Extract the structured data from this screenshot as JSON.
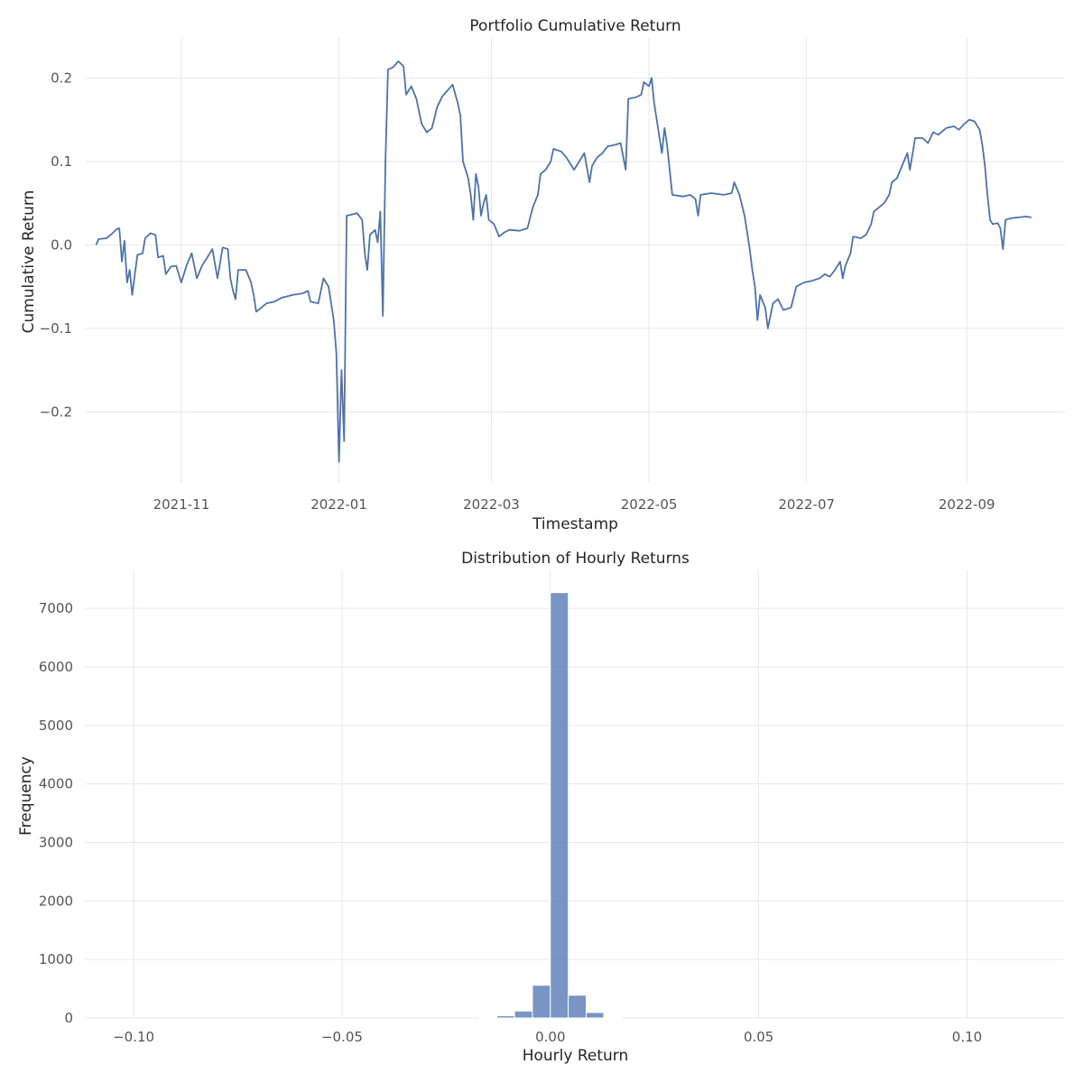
{
  "chart_data": [
    {
      "type": "line",
      "title": "Portfolio Cumulative Return",
      "xlabel": "Timestamp",
      "ylabel": "Cumulative Return",
      "grid": true,
      "x_range": [
        "2021-09-25",
        "2022-10-09"
      ],
      "ylim": [
        -0.285,
        0.248
      ],
      "x_ticks": [
        {
          "label": "2021-11",
          "date": "2021-11-01"
        },
        {
          "label": "2022-01",
          "date": "2022-01-01"
        },
        {
          "label": "2022-03",
          "date": "2022-03-01"
        },
        {
          "label": "2022-05",
          "date": "2022-05-01"
        },
        {
          "label": "2022-07",
          "date": "2022-07-01"
        },
        {
          "label": "2022-09",
          "date": "2022-09-01"
        }
      ],
      "y_ticks": [
        {
          "label": "−0.2",
          "value": -0.2
        },
        {
          "label": "−0.1",
          "value": -0.1
        },
        {
          "label": "0.0",
          "value": 0.0
        },
        {
          "label": "0.1",
          "value": 0.1
        },
        {
          "label": "0.2",
          "value": 0.2
        }
      ],
      "series": [
        {
          "color": "#4c72b0",
          "points": [
            [
              "2021-09-29",
              0.0
            ],
            [
              "2021-09-30",
              0.007
            ],
            [
              "2021-10-03",
              0.008
            ],
            [
              "2021-10-05",
              0.013
            ],
            [
              "2021-10-07",
              0.019
            ],
            [
              "2021-10-08",
              0.02
            ],
            [
              "2021-10-09",
              -0.02
            ],
            [
              "2021-10-10",
              0.005
            ],
            [
              "2021-10-11",
              -0.045
            ],
            [
              "2021-10-12",
              -0.03
            ],
            [
              "2021-10-13",
              -0.06
            ],
            [
              "2021-10-14",
              -0.035
            ],
            [
              "2021-10-15",
              -0.012
            ],
            [
              "2021-10-17",
              -0.01
            ],
            [
              "2021-10-18",
              0.008
            ],
            [
              "2021-10-20",
              0.014
            ],
            [
              "2021-10-22",
              0.012
            ],
            [
              "2021-10-23",
              -0.015
            ],
            [
              "2021-10-25",
              -0.013
            ],
            [
              "2021-10-26",
              -0.035
            ],
            [
              "2021-10-28",
              -0.026
            ],
            [
              "2021-10-30",
              -0.025
            ],
            [
              "2021-11-01",
              -0.045
            ],
            [
              "2021-11-03",
              -0.025
            ],
            [
              "2021-11-05",
              -0.01
            ],
            [
              "2021-11-07",
              -0.04
            ],
            [
              "2021-11-09",
              -0.025
            ],
            [
              "2021-11-11",
              -0.015
            ],
            [
              "2021-11-13",
              -0.005
            ],
            [
              "2021-11-15",
              -0.04
            ],
            [
              "2021-11-17",
              -0.003
            ],
            [
              "2021-11-19",
              -0.005
            ],
            [
              "2021-11-20",
              -0.04
            ],
            [
              "2021-11-21",
              -0.055
            ],
            [
              "2021-11-22",
              -0.065
            ],
            [
              "2021-11-23",
              -0.03
            ],
            [
              "2021-11-26",
              -0.03
            ],
            [
              "2021-11-28",
              -0.045
            ],
            [
              "2021-11-29",
              -0.06
            ],
            [
              "2021-11-30",
              -0.08
            ],
            [
              "2021-12-02",
              -0.075
            ],
            [
              "2021-12-04",
              -0.07
            ],
            [
              "2021-12-07",
              -0.068
            ],
            [
              "2021-12-10",
              -0.063
            ],
            [
              "2021-12-14",
              -0.06
            ],
            [
              "2021-12-18",
              -0.058
            ],
            [
              "2021-12-20",
              -0.055
            ],
            [
              "2021-12-21",
              -0.068
            ],
            [
              "2021-12-24",
              -0.07
            ],
            [
              "2021-12-26",
              -0.04
            ],
            [
              "2021-12-28",
              -0.05
            ],
            [
              "2021-12-30",
              -0.09
            ],
            [
              "2021-12-31",
              -0.13
            ],
            [
              "2022-01-01",
              -0.26
            ],
            [
              "2022-01-02",
              -0.15
            ],
            [
              "2022-01-03",
              -0.235
            ],
            [
              "2022-01-04",
              0.035
            ],
            [
              "2022-01-08",
              0.038
            ],
            [
              "2022-01-10",
              0.03
            ],
            [
              "2022-01-11",
              -0.01
            ],
            [
              "2022-01-12",
              -0.03
            ],
            [
              "2022-01-13",
              0.012
            ],
            [
              "2022-01-15",
              0.018
            ],
            [
              "2022-01-16",
              0.003
            ],
            [
              "2022-01-17",
              0.04
            ],
            [
              "2022-01-18",
              -0.085
            ],
            [
              "2022-01-19",
              0.1
            ],
            [
              "2022-01-20",
              0.21
            ],
            [
              "2022-01-22",
              0.213
            ],
            [
              "2022-01-24",
              0.22
            ],
            [
              "2022-01-26",
              0.214
            ],
            [
              "2022-01-27",
              0.18
            ],
            [
              "2022-01-29",
              0.19
            ],
            [
              "2022-01-31",
              0.175
            ],
            [
              "2022-02-02",
              0.145
            ],
            [
              "2022-02-04",
              0.135
            ],
            [
              "2022-02-06",
              0.14
            ],
            [
              "2022-02-08",
              0.165
            ],
            [
              "2022-02-10",
              0.178
            ],
            [
              "2022-02-12",
              0.185
            ],
            [
              "2022-02-14",
              0.192
            ],
            [
              "2022-02-16",
              0.17
            ],
            [
              "2022-02-17",
              0.155
            ],
            [
              "2022-02-18",
              0.1
            ],
            [
              "2022-02-20",
              0.08
            ],
            [
              "2022-02-21",
              0.06
            ],
            [
              "2022-02-22",
              0.03
            ],
            [
              "2022-02-23",
              0.085
            ],
            [
              "2022-02-24",
              0.07
            ],
            [
              "2022-02-25",
              0.035
            ],
            [
              "2022-02-26",
              0.05
            ],
            [
              "2022-02-27",
              0.06
            ],
            [
              "2022-02-28",
              0.03
            ],
            [
              "2022-03-02",
              0.025
            ],
            [
              "2022-03-04",
              0.01
            ],
            [
              "2022-03-06",
              0.015
            ],
            [
              "2022-03-08",
              0.018
            ],
            [
              "2022-03-12",
              0.017
            ],
            [
              "2022-03-15",
              0.02
            ],
            [
              "2022-03-17",
              0.045
            ],
            [
              "2022-03-19",
              0.06
            ],
            [
              "2022-03-20",
              0.085
            ],
            [
              "2022-03-22",
              0.09
            ],
            [
              "2022-03-24",
              0.1
            ],
            [
              "2022-03-25",
              0.115
            ],
            [
              "2022-03-28",
              0.112
            ],
            [
              "2022-03-30",
              0.105
            ],
            [
              "2022-04-01",
              0.095
            ],
            [
              "2022-04-02",
              0.09
            ],
            [
              "2022-04-04",
              0.1
            ],
            [
              "2022-04-06",
              0.11
            ],
            [
              "2022-04-08",
              0.075
            ],
            [
              "2022-04-09",
              0.095
            ],
            [
              "2022-04-11",
              0.105
            ],
            [
              "2022-04-13",
              0.11
            ],
            [
              "2022-04-15",
              0.118
            ],
            [
              "2022-04-18",
              0.12
            ],
            [
              "2022-04-20",
              0.122
            ],
            [
              "2022-04-22",
              0.09
            ],
            [
              "2022-04-23",
              0.175
            ],
            [
              "2022-04-26",
              0.177
            ],
            [
              "2022-04-28",
              0.18
            ],
            [
              "2022-04-29",
              0.195
            ],
            [
              "2022-05-01",
              0.19
            ],
            [
              "2022-05-02",
              0.2
            ],
            [
              "2022-05-03",
              0.17
            ],
            [
              "2022-05-04",
              0.15
            ],
            [
              "2022-05-05",
              0.13
            ],
            [
              "2022-05-06",
              0.11
            ],
            [
              "2022-05-07",
              0.14
            ],
            [
              "2022-05-08",
              0.12
            ],
            [
              "2022-05-10",
              0.06
            ],
            [
              "2022-05-14",
              0.058
            ],
            [
              "2022-05-17",
              0.06
            ],
            [
              "2022-05-19",
              0.055
            ],
            [
              "2022-05-20",
              0.035
            ],
            [
              "2022-05-21",
              0.06
            ],
            [
              "2022-05-25",
              0.062
            ],
            [
              "2022-05-30",
              0.06
            ],
            [
              "2022-06-02",
              0.062
            ],
            [
              "2022-06-03",
              0.075
            ],
            [
              "2022-06-05",
              0.06
            ],
            [
              "2022-06-07",
              0.035
            ],
            [
              "2022-06-08",
              0.015
            ],
            [
              "2022-06-09",
              -0.005
            ],
            [
              "2022-06-10",
              -0.03
            ],
            [
              "2022-06-11",
              -0.05
            ],
            [
              "2022-06-12",
              -0.09
            ],
            [
              "2022-06-13",
              -0.06
            ],
            [
              "2022-06-15",
              -0.075
            ],
            [
              "2022-06-16",
              -0.1
            ],
            [
              "2022-06-18",
              -0.07
            ],
            [
              "2022-06-20",
              -0.065
            ],
            [
              "2022-06-22",
              -0.078
            ],
            [
              "2022-06-25",
              -0.075
            ],
            [
              "2022-06-27",
              -0.05
            ],
            [
              "2022-06-30",
              -0.045
            ],
            [
              "2022-07-03",
              -0.043
            ],
            [
              "2022-07-06",
              -0.04
            ],
            [
              "2022-07-08",
              -0.035
            ],
            [
              "2022-07-10",
              -0.038
            ],
            [
              "2022-07-12",
              -0.03
            ],
            [
              "2022-07-14",
              -0.02
            ],
            [
              "2022-07-15",
              -0.04
            ],
            [
              "2022-07-16",
              -0.025
            ],
            [
              "2022-07-18",
              -0.01
            ],
            [
              "2022-07-19",
              0.01
            ],
            [
              "2022-07-22",
              0.008
            ],
            [
              "2022-07-24",
              0.012
            ],
            [
              "2022-07-26",
              0.025
            ],
            [
              "2022-07-27",
              0.04
            ],
            [
              "2022-07-29",
              0.045
            ],
            [
              "2022-07-31",
              0.05
            ],
            [
              "2022-08-02",
              0.06
            ],
            [
              "2022-08-03",
              0.075
            ],
            [
              "2022-08-05",
              0.08
            ],
            [
              "2022-08-07",
              0.095
            ],
            [
              "2022-08-09",
              0.11
            ],
            [
              "2022-08-10",
              0.09
            ],
            [
              "2022-08-12",
              0.128
            ],
            [
              "2022-08-15",
              0.128
            ],
            [
              "2022-08-17",
              0.122
            ],
            [
              "2022-08-19",
              0.135
            ],
            [
              "2022-08-21",
              0.132
            ],
            [
              "2022-08-24",
              0.14
            ],
            [
              "2022-08-27",
              0.142
            ],
            [
              "2022-08-29",
              0.138
            ],
            [
              "2022-08-31",
              0.145
            ],
            [
              "2022-09-02",
              0.15
            ],
            [
              "2022-09-04",
              0.148
            ],
            [
              "2022-09-06",
              0.138
            ],
            [
              "2022-09-07",
              0.12
            ],
            [
              "2022-09-08",
              0.095
            ],
            [
              "2022-09-09",
              0.06
            ],
            [
              "2022-09-10",
              0.03
            ],
            [
              "2022-09-11",
              0.025
            ],
            [
              "2022-09-13",
              0.026
            ],
            [
              "2022-09-14",
              0.02
            ],
            [
              "2022-09-15",
              -0.005
            ],
            [
              "2022-09-16",
              0.03
            ],
            [
              "2022-09-18",
              0.032
            ],
            [
              "2022-09-21",
              0.033
            ],
            [
              "2022-09-24",
              0.034
            ],
            [
              "2022-09-26",
              0.033
            ]
          ]
        }
      ]
    },
    {
      "type": "bar",
      "title": "Distribution of Hourly Returns",
      "xlabel": "Hourly Return",
      "ylabel": "Frequency",
      "grid": true,
      "xlim": [
        -0.1115,
        0.1235
      ],
      "ylim": [
        0,
        7650
      ],
      "x_ticks": [
        {
          "label": "−0.10",
          "value": -0.1
        },
        {
          "label": "−0.05",
          "value": -0.05
        },
        {
          "label": "0.00",
          "value": 0.0
        },
        {
          "label": "0.05",
          "value": 0.05
        },
        {
          "label": "0.10",
          "value": 0.1
        }
      ],
      "y_ticks": [
        {
          "label": "0",
          "value": 0
        },
        {
          "label": "1000",
          "value": 1000
        },
        {
          "label": "2000",
          "value": 2000
        },
        {
          "label": "3000",
          "value": 3000
        },
        {
          "label": "4000",
          "value": 4000
        },
        {
          "label": "5000",
          "value": 5000
        },
        {
          "label": "6000",
          "value": 6000
        },
        {
          "label": "7000",
          "value": 7000
        }
      ],
      "color": "#4c72b0",
      "bins": [
        {
          "start": -0.0171,
          "end": -0.0128,
          "count": 5
        },
        {
          "start": -0.0128,
          "end": -0.0086,
          "count": 40
        },
        {
          "start": -0.0086,
          "end": -0.0043,
          "count": 120
        },
        {
          "start": -0.0043,
          "end": 0.0,
          "count": 560
        },
        {
          "start": 0.0,
          "end": 0.0043,
          "count": 7270
        },
        {
          "start": 0.0043,
          "end": 0.0086,
          "count": 390
        },
        {
          "start": 0.0086,
          "end": 0.0128,
          "count": 95
        },
        {
          "start": 0.0128,
          "end": 0.0171,
          "count": 10
        }
      ]
    }
  ]
}
